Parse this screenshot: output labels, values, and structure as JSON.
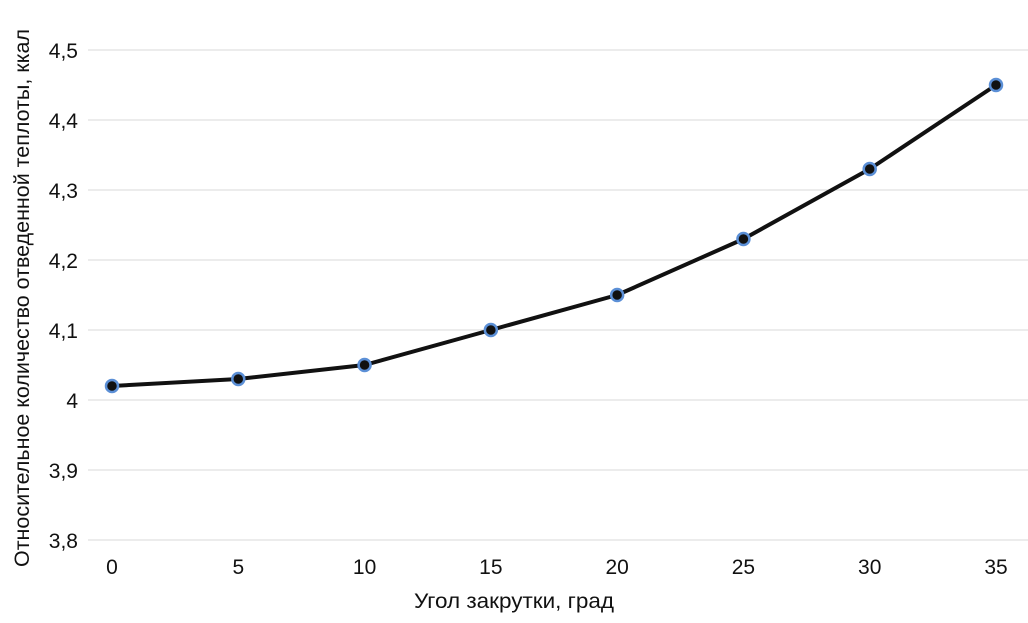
{
  "chart_data": {
    "type": "line",
    "title": "",
    "xlabel": "Угол закрутки, град",
    "ylabel": "Относительное количество отведенной теплоты, ккал",
    "x": [
      0,
      5,
      10,
      15,
      20,
      25,
      30,
      35
    ],
    "series": [
      {
        "values": [
          4.02,
          4.03,
          4.05,
          4.1,
          4.15,
          4.23,
          4.33,
          4.45
        ]
      }
    ],
    "xlim": [
      0,
      35
    ],
    "ylim": [
      3.8,
      4.5
    ],
    "x_ticks": [
      "0",
      "5",
      "10",
      "15",
      "20",
      "25",
      "30",
      "35"
    ],
    "y_ticks": [
      "3,8",
      "3,9",
      "4",
      "4,1",
      "4,2",
      "4,3",
      "4,4",
      "4,5"
    ],
    "grid": "horizontal",
    "legend": "none",
    "colors": {
      "line": "#111111",
      "marker_fill": "#111111",
      "marker_edge": "#5b8fd6",
      "grid": "#d9d9d9"
    }
  }
}
